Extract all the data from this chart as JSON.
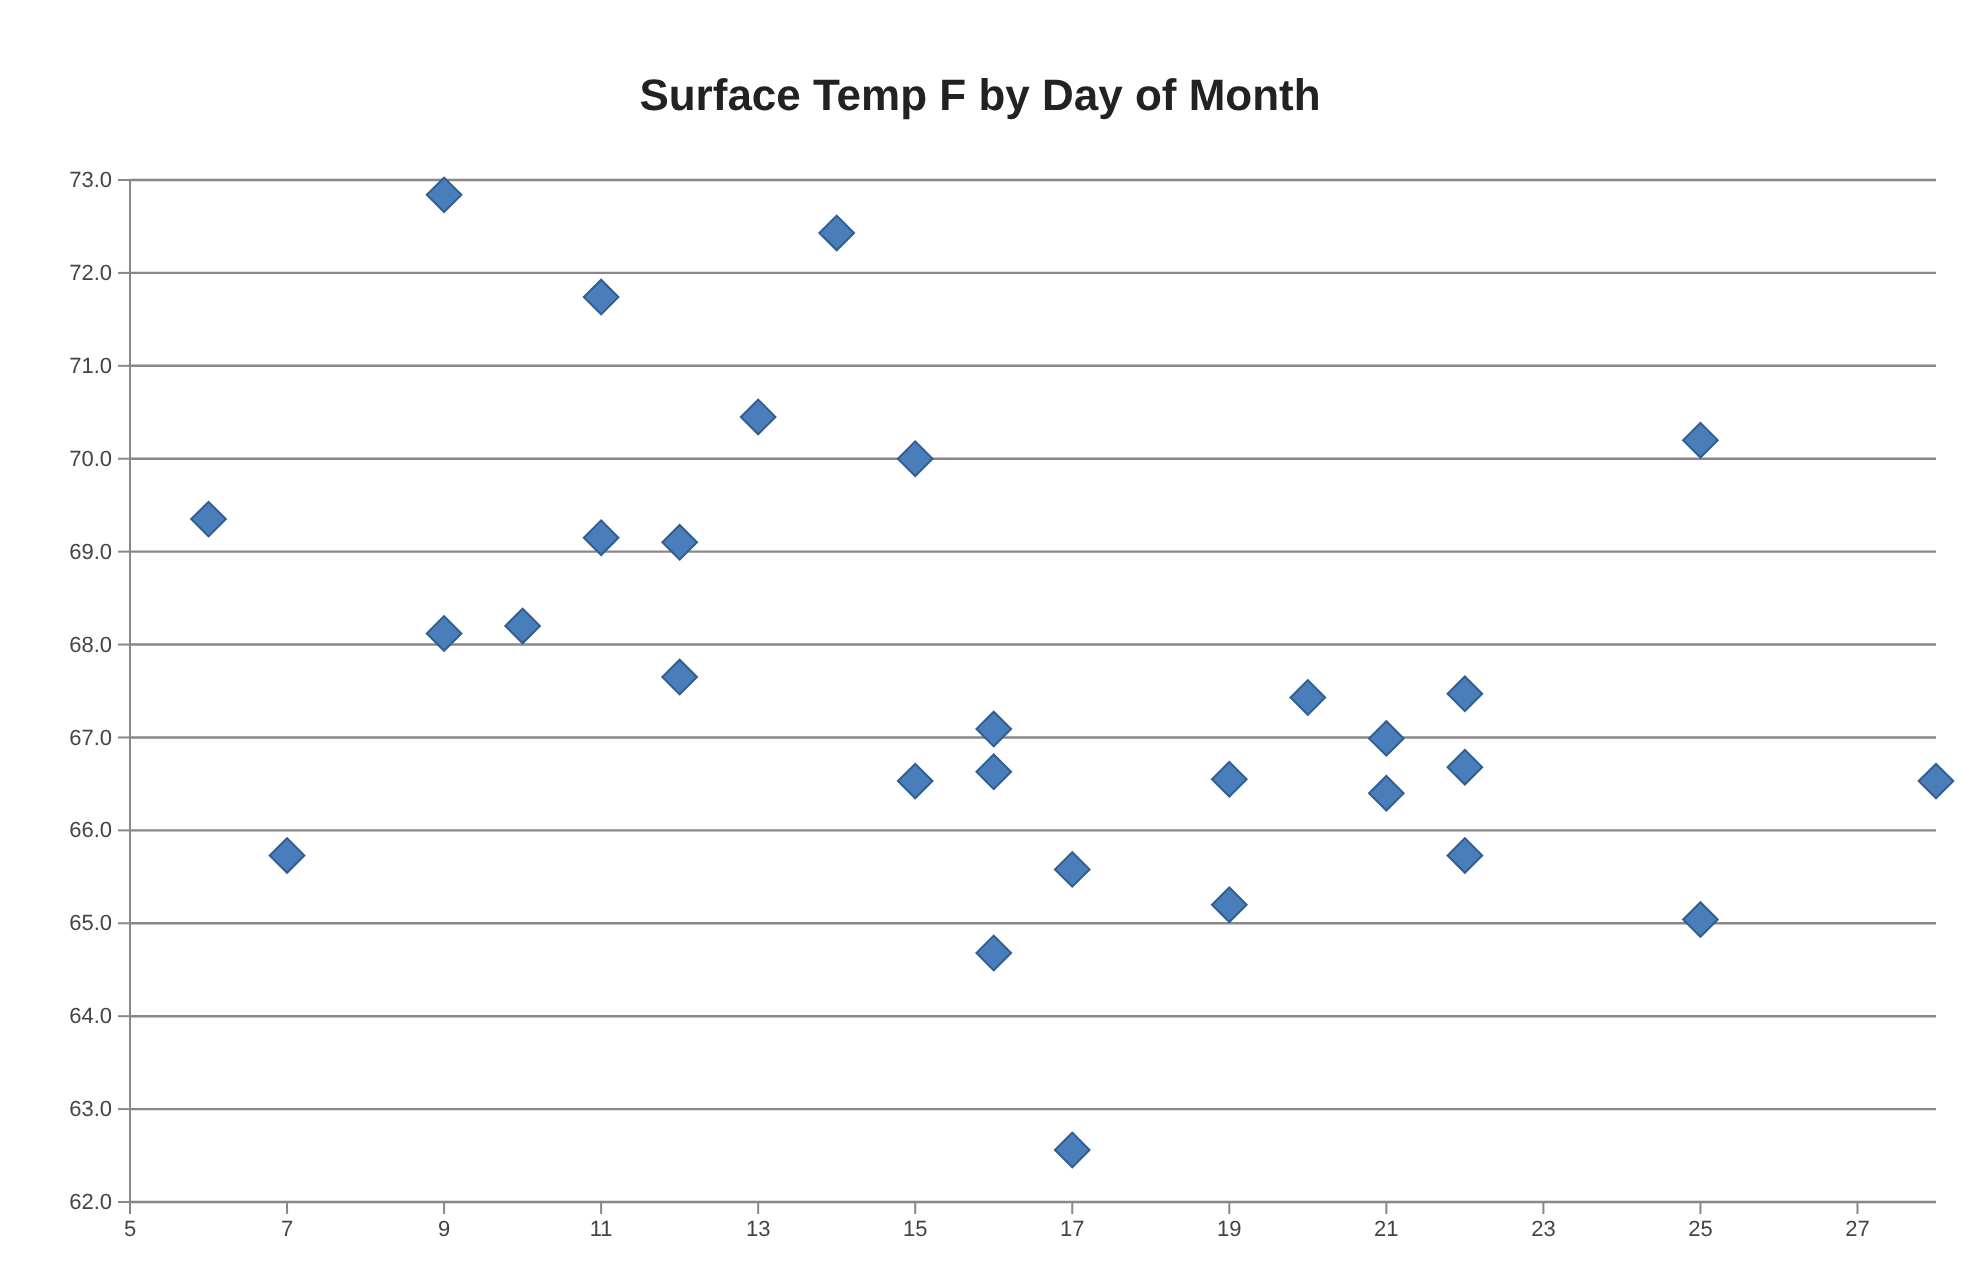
{
  "chart_data": {
    "type": "scatter",
    "title": "Surface Temp F by Day of Month",
    "marker": "diamond",
    "grid": "y",
    "x": [
      6,
      7,
      9,
      9,
      10,
      11,
      11,
      12,
      12,
      13,
      14,
      15,
      15,
      16,
      16,
      16,
      17,
      17,
      19,
      19,
      20,
      21,
      21,
      22,
      22,
      22,
      25,
      25,
      28
    ],
    "series": [
      {
        "color": "#4a7ebb",
        "values": [
          69.35,
          65.73,
          72.84,
          68.12,
          68.2,
          71.74,
          69.15,
          69.1,
          67.65,
          70.45,
          72.43,
          70.0,
          66.53,
          67.09,
          66.63,
          64.68,
          65.58,
          62.56,
          66.55,
          65.2,
          67.43,
          66.99,
          66.4,
          67.47,
          66.68,
          65.73,
          70.2,
          65.04,
          66.53
        ]
      }
    ],
    "xlim": [
      5,
      28
    ],
    "xticks": [
      5,
      7,
      9,
      11,
      13,
      15,
      17,
      19,
      21,
      23,
      25,
      27
    ],
    "ylim": [
      62,
      73
    ],
    "yticks": [
      {
        "value": 62,
        "label": "62.0"
      },
      {
        "value": 63,
        "label": "63.0"
      },
      {
        "value": 64,
        "label": "64.0"
      },
      {
        "value": 65,
        "label": "65.0"
      },
      {
        "value": 66,
        "label": "66.0"
      },
      {
        "value": 67,
        "label": "67.0"
      },
      {
        "value": 68,
        "label": "68.0"
      },
      {
        "value": 69,
        "label": "69.0"
      },
      {
        "value": 70,
        "label": "70.0"
      },
      {
        "value": 71,
        "label": "71.0"
      },
      {
        "value": 72,
        "label": "72.0"
      },
      {
        "value": 73,
        "label": "73.0"
      }
    ]
  }
}
